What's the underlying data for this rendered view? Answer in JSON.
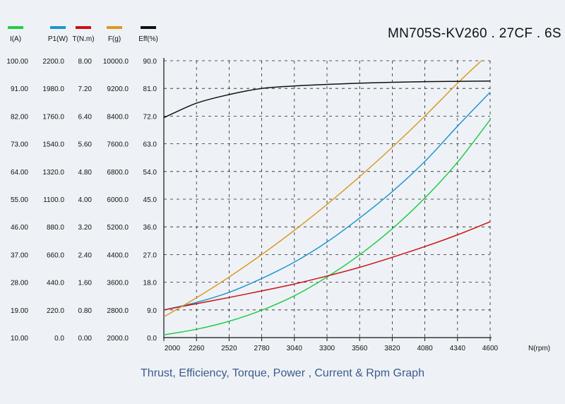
{
  "chart_data": {
    "type": "line",
    "title": "MN705S-KV260 . 27CF . 6S",
    "caption": "Thrust, Efficiency, Torque, Power , Current & Rpm Graph",
    "xlabel": "N(rpm)",
    "x_ticks": [
      "2000",
      "2260",
      "2520",
      "2780",
      "3040",
      "3300",
      "3560",
      "3820",
      "4080",
      "4340",
      "4600"
    ],
    "xlim": [
      2000,
      4600
    ],
    "grid": true,
    "legend_position": "top-left",
    "series": [
      {
        "name": "I(A)",
        "color": "#22cc44",
        "ylim": [
          10,
          100
        ],
        "ticks": [
          "100.00",
          "91.00",
          "82.00",
          "73.00",
          "64.00",
          "55.00",
          "46.00",
          "37.00",
          "28.00",
          "19.00",
          "10.00"
        ],
        "x": [
          2000,
          2260,
          2520,
          2780,
          3040,
          3300,
          3560,
          3820,
          4080,
          4340,
          4600
        ],
        "y": [
          10.9,
          12.7,
          15.3,
          18.9,
          23.6,
          29.7,
          36.9,
          45.4,
          55.4,
          67.0,
          80.8
        ]
      },
      {
        "name": "P1(W)",
        "color": "#1f95cc",
        "ylim": [
          0,
          2200
        ],
        "ticks": [
          "2200.0",
          "1980.0",
          "1760.0",
          "1540.0",
          "1320.0",
          "1100.0",
          "880.0",
          "660.0",
          "440.0",
          "220.0",
          "0.0"
        ],
        "x": [
          2000,
          2260,
          2520,
          2780,
          3040,
          3300,
          3560,
          3820,
          4080,
          4340,
          4600
        ],
        "y": [
          220,
          280,
          360,
          470,
          600,
          760,
          950,
          1160,
          1400,
          1680,
          1950
        ]
      },
      {
        "name": "T(N.m)",
        "color": "#cc1111",
        "ylim": [
          0,
          8
        ],
        "ticks": [
          "8.00",
          "7.20",
          "6.40",
          "5.60",
          "4.80",
          "4.00",
          "3.20",
          "2.40",
          "1.60",
          "0.80",
          "0.00"
        ],
        "x": [
          2000,
          2260,
          2520,
          2780,
          3040,
          3300,
          3560,
          3820,
          4080,
          4340,
          4600
        ],
        "y": [
          0.8,
          0.98,
          1.16,
          1.35,
          1.55,
          1.78,
          2.03,
          2.32,
          2.63,
          2.97,
          3.35
        ]
      },
      {
        "name": "F(g)",
        "color": "#dd9922",
        "ylim": [
          2000,
          10000
        ],
        "ticks": [
          "10000.0",
          "9200.0",
          "8400.0",
          "7600.0",
          "6800.0",
          "6000.0",
          "5200.0",
          "4400.0",
          "3600.0",
          "2800.0",
          "2000.0"
        ],
        "x": [
          2000,
          2260,
          2520,
          2780,
          3040,
          3300,
          3560,
          3820,
          4080,
          4340,
          4530
        ],
        "y": [
          2600,
          3150,
          3750,
          4400,
          5100,
          5850,
          6650,
          7500,
          8400,
          9350,
          10000
        ]
      },
      {
        "name": "Eff(%)",
        "color": "#111111",
        "ylim": [
          0,
          90
        ],
        "ticks": [
          "90.0",
          "81.0",
          "72.0",
          "63.0",
          "54.0",
          "45.0",
          "36.0",
          "27.0",
          "18.0",
          "9.0",
          "0.0"
        ],
        "x": [
          2000,
          2260,
          2520,
          2780,
          3040,
          3300,
          3560,
          3820,
          4080,
          4340,
          4600
        ],
        "y": [
          71.5,
          76.2,
          79.0,
          81.0,
          81.8,
          82.3,
          82.7,
          83.0,
          83.2,
          83.3,
          83.4
        ]
      }
    ]
  }
}
